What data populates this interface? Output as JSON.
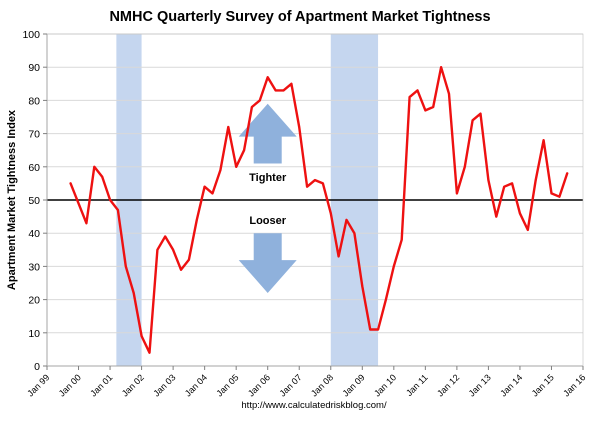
{
  "chart_data": {
    "type": "line",
    "title": "NMHC Quarterly Survey of Apartment Market Tightness",
    "ylabel": "Apartment Market Tightness Index",
    "xlabel": "",
    "source": "http://www.calculatedriskblog.com/",
    "ylim": [
      0,
      100
    ],
    "yticks": [
      0,
      10,
      20,
      30,
      40,
      50,
      60,
      70,
      80,
      90,
      100
    ],
    "xlim": [
      1999.0,
      2016.0
    ],
    "xticks": [
      {
        "label": "Jan 99",
        "x": 1999
      },
      {
        "label": "Jan 00",
        "x": 2000
      },
      {
        "label": "Jan 01",
        "x": 2001
      },
      {
        "label": "Jan 02",
        "x": 2002
      },
      {
        "label": "Jan 03",
        "x": 2003
      },
      {
        "label": "Jan 04",
        "x": 2004
      },
      {
        "label": "Jan 05",
        "x": 2005
      },
      {
        "label": "Jan 06",
        "x": 2006
      },
      {
        "label": "Jan 07",
        "x": 2007
      },
      {
        "label": "Jan 08",
        "x": 2008
      },
      {
        "label": "Jan 09",
        "x": 2009
      },
      {
        "label": "Jan 10",
        "x": 2010
      },
      {
        "label": "Jan 11",
        "x": 2011
      },
      {
        "label": "Jan 12",
        "x": 2012
      },
      {
        "label": "Jan 13",
        "x": 2013
      },
      {
        "label": "Jan 14",
        "x": 2014
      },
      {
        "label": "Jan 15",
        "x": 2015
      },
      {
        "label": "Jan 16",
        "x": 2016
      }
    ],
    "recessions": [
      {
        "start": 2001.2,
        "end": 2002.0
      },
      {
        "start": 2008.0,
        "end": 2009.5
      }
    ],
    "reference_line": 50,
    "annotations": [
      {
        "text": "Tighter",
        "direction": "up",
        "x": 2006.0,
        "y_text": 57,
        "y_arrow_base": 61,
        "y_arrow_tip": 79
      },
      {
        "text": "Looser",
        "direction": "down",
        "x": 2006.0,
        "y_text": 44,
        "y_arrow_base": 40,
        "y_arrow_tip": 22
      }
    ],
    "series": [
      {
        "name": "Apartment Market Tightness Index",
        "color": "#ee1111",
        "points": [
          [
            1999.75,
            55
          ],
          [
            2000.0,
            49
          ],
          [
            2000.25,
            43
          ],
          [
            2000.5,
            60
          ],
          [
            2000.75,
            57
          ],
          [
            2001.0,
            50
          ],
          [
            2001.25,
            47
          ],
          [
            2001.5,
            30
          ],
          [
            2001.75,
            22
          ],
          [
            2002.0,
            9
          ],
          [
            2002.25,
            4
          ],
          [
            2002.5,
            35
          ],
          [
            2002.75,
            39
          ],
          [
            2003.0,
            35
          ],
          [
            2003.25,
            29
          ],
          [
            2003.5,
            32
          ],
          [
            2003.75,
            44
          ],
          [
            2004.0,
            54
          ],
          [
            2004.25,
            52
          ],
          [
            2004.5,
            59
          ],
          [
            2004.75,
            72
          ],
          [
            2005.0,
            60
          ],
          [
            2005.25,
            65
          ],
          [
            2005.5,
            78
          ],
          [
            2005.75,
            80
          ],
          [
            2006.0,
            87
          ],
          [
            2006.25,
            83
          ],
          [
            2006.5,
            83
          ],
          [
            2006.75,
            85
          ],
          [
            2007.0,
            72
          ],
          [
            2007.25,
            54
          ],
          [
            2007.5,
            56
          ],
          [
            2007.75,
            55
          ],
          [
            2008.0,
            46
          ],
          [
            2008.25,
            33
          ],
          [
            2008.5,
            44
          ],
          [
            2008.75,
            40
          ],
          [
            2009.0,
            24
          ],
          [
            2009.25,
            11
          ],
          [
            2009.5,
            11
          ],
          [
            2009.75,
            20
          ],
          [
            2010.0,
            30
          ],
          [
            2010.25,
            38
          ],
          [
            2010.5,
            81
          ],
          [
            2010.75,
            83
          ],
          [
            2011.0,
            77
          ],
          [
            2011.25,
            78
          ],
          [
            2011.5,
            90
          ],
          [
            2011.75,
            82
          ],
          [
            2012.0,
            52
          ],
          [
            2012.25,
            60
          ],
          [
            2012.5,
            74
          ],
          [
            2012.75,
            76
          ],
          [
            2013.0,
            56
          ],
          [
            2013.25,
            45
          ],
          [
            2013.5,
            54
          ],
          [
            2013.75,
            55
          ],
          [
            2014.0,
            46
          ],
          [
            2014.25,
            41
          ],
          [
            2014.5,
            56
          ],
          [
            2014.75,
            68
          ],
          [
            2015.0,
            52
          ],
          [
            2015.25,
            51
          ],
          [
            2015.5,
            58
          ]
        ]
      }
    ],
    "colors": {
      "recession_fill": "#c5d6ef",
      "arrow_fill": "#8fb1dc",
      "grid": "#d9d9d9",
      "axis": "#7f7f7f"
    }
  }
}
